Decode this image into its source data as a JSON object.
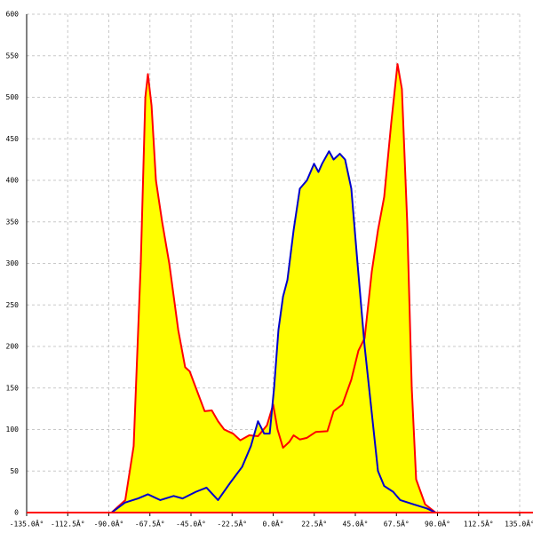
{
  "chart_data": {
    "type": "area",
    "xlim": [
      -135,
      135
    ],
    "ylim": [
      0,
      600
    ],
    "xticks": [
      {
        "value": -135,
        "label": "-135.0Â°"
      },
      {
        "value": -112.5,
        "label": "-112.5Â°"
      },
      {
        "value": -90,
        "label": "-90.0Â°"
      },
      {
        "value": -67.5,
        "label": "-67.5Â°"
      },
      {
        "value": -45,
        "label": "-45.0Â°"
      },
      {
        "value": -22.5,
        "label": "-22.5Â°"
      },
      {
        "value": 0,
        "label": "0.0Â°"
      },
      {
        "value": 22.5,
        "label": "22.5Â°"
      },
      {
        "value": 45,
        "label": "45.0Â°"
      },
      {
        "value": 67.5,
        "label": "67.5Â°"
      },
      {
        "value": 90,
        "label": "90.0Â°"
      },
      {
        "value": 112.5,
        "label": "112.5Â°"
      },
      {
        "value": 135,
        "label": "135.0Â°"
      }
    ],
    "yticks": [
      0,
      50,
      100,
      150,
      200,
      250,
      300,
      350,
      400,
      450,
      500,
      550,
      600
    ],
    "grid": true,
    "fill_color": "#ffff00",
    "series": [
      {
        "color": "#ff0000",
        "x": [
          -135,
          -88.5,
          -81,
          -76.4,
          -72.5,
          -70,
          -68.6,
          -66.6,
          -64.2,
          -60.8,
          -56.9,
          -52,
          -48.2,
          -45.7,
          -42.3,
          -37.5,
          -33.6,
          -30.2,
          -26.8,
          -21.9,
          -18,
          -13.1,
          -8.3,
          -3.4,
          0,
          2.4,
          5.4,
          8.8,
          11.2,
          14.6,
          18.5,
          23.3,
          29.7,
          33.1,
          37.9,
          42.8,
          46.7,
          50.1,
          54,
          57.4,
          60.8,
          64.7,
          68.1,
          70.5,
          73.4,
          75.9,
          78.3,
          83.2,
          89,
          135
        ],
        "values": [
          0,
          0,
          15,
          80,
          300,
          500,
          528,
          490,
          400,
          350,
          300,
          220,
          175,
          170,
          150,
          122,
          123,
          110,
          100,
          95,
          87,
          93,
          92,
          105,
          130,
          100,
          78,
          85,
          93,
          88,
          90,
          97,
          98,
          122,
          130,
          160,
          195,
          210,
          290,
          340,
          380,
          470,
          540,
          510,
          350,
          150,
          40,
          10,
          0,
          0
        ]
      },
      {
        "color": "#0000cc",
        "x": [
          -135,
          -88.5,
          -81.2,
          -73.9,
          -68.6,
          -61.8,
          -54.5,
          -49.6,
          -42.3,
          -36.5,
          -30.2,
          -23.8,
          -17,
          -12.2,
          -8.3,
          -4.9,
          -1.9,
          0.5,
          2.9,
          5.4,
          7.8,
          11.2,
          14.6,
          18.5,
          22.4,
          24.8,
          26.8,
          30.6,
          33.1,
          36.5,
          39.4,
          42.8,
          46.2,
          50.1,
          54,
          57.4,
          60.8,
          65.7,
          69.6,
          76.8,
          84.1,
          89,
          135
        ],
        "values": [
          0,
          0,
          12,
          17,
          22,
          15,
          20,
          17,
          25,
          30,
          15,
          35,
          55,
          80,
          110,
          95,
          95,
          150,
          220,
          260,
          280,
          340,
          390,
          400,
          420,
          410,
          420,
          435,
          425,
          432,
          425,
          390,
          300,
          200,
          120,
          50,
          32,
          25,
          15,
          10,
          5,
          0,
          0
        ]
      }
    ]
  }
}
